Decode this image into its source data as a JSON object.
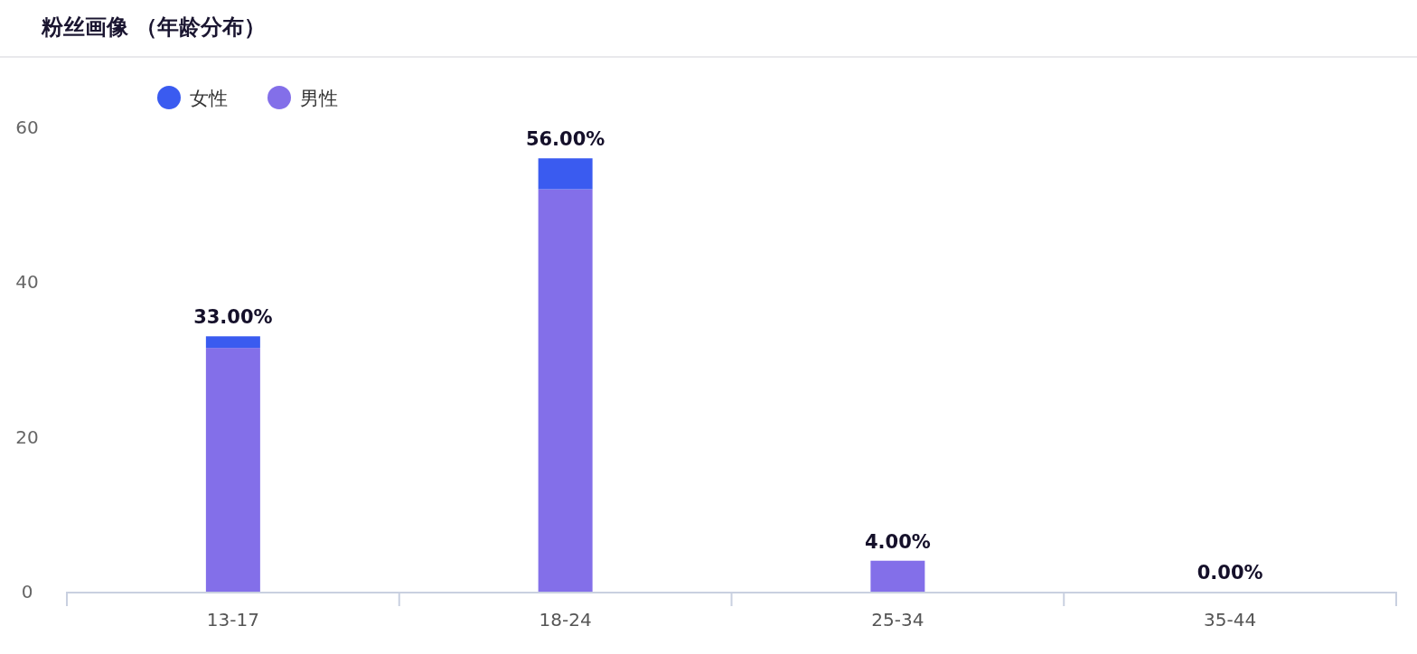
{
  "chart_data": {
    "type": "bar",
    "title": "粉丝画像 （年龄分布）",
    "categories": [
      "13-17",
      "18-24",
      "25-34",
      "35-44"
    ],
    "stacked": true,
    "series": [
      {
        "name": "男性",
        "color": "#836fe9",
        "values": [
          31.5,
          52,
          4,
          0
        ]
      },
      {
        "name": "女性",
        "color": "#3a5bf0",
        "values": [
          1.5,
          4,
          0,
          0
        ]
      }
    ],
    "totals": [
      "33.00%",
      "56.00%",
      "4.00%",
      "0.00%"
    ],
    "ylim": [
      0,
      60
    ],
    "yticks": [
      0,
      20,
      40,
      60
    ],
    "legend": "top left"
  }
}
